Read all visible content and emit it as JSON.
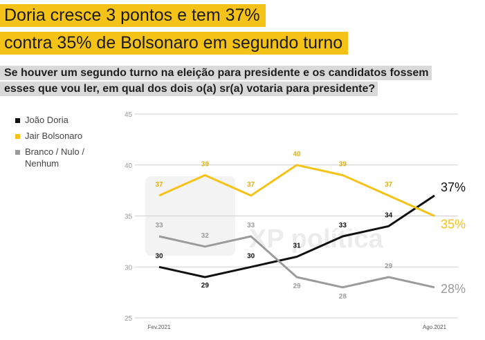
{
  "headline": {
    "line1": "Doria cresce 3 pontos e tem 37%",
    "line2": "contra 35% de Bolsonaro em segundo turno"
  },
  "question": {
    "line1": "Se houver um segundo turno na eleição para presidente e os candidatos fossem",
    "line2": "esses que vou ler, em qual dos dois o(a) sr(a) votaria para presidente?"
  },
  "watermark": "XP política",
  "chart_data": {
    "type": "line",
    "ylim": [
      25,
      45
    ],
    "yticks": [
      25,
      30,
      35,
      40,
      45
    ],
    "grid": true,
    "legend_position": "left",
    "x_tick_labels": [
      "Fev.2021",
      "Ago.2021"
    ],
    "x_count": 7,
    "series": [
      {
        "name": "João Doria",
        "color": "#111111",
        "values": [
          30,
          29,
          30,
          31,
          33,
          34,
          37
        ],
        "labels": [
          "30",
          "29",
          "30",
          "31",
          "33",
          "34",
          ""
        ],
        "label_position": "above",
        "end_label": "37%"
      },
      {
        "name": "Jair Bolsonaro",
        "color": "#f5c218",
        "values": [
          37,
          39,
          37,
          40,
          39,
          37,
          35
        ],
        "labels": [
          "37",
          "39",
          "37",
          "40",
          "39",
          "37",
          ""
        ],
        "label_position": "above",
        "end_label": "35%"
      },
      {
        "name": "Branco / Nulo / Nenhum",
        "legend_lines": [
          "Branco / Nulo /",
          "Nenhum"
        ],
        "color": "#9b9b9b",
        "values": [
          33,
          32,
          33,
          29,
          28,
          29,
          28
        ],
        "labels": [
          "33",
          "32",
          "33",
          "29",
          "28",
          "29",
          ""
        ],
        "label_position": "mixed",
        "end_label": "28%"
      }
    ]
  }
}
